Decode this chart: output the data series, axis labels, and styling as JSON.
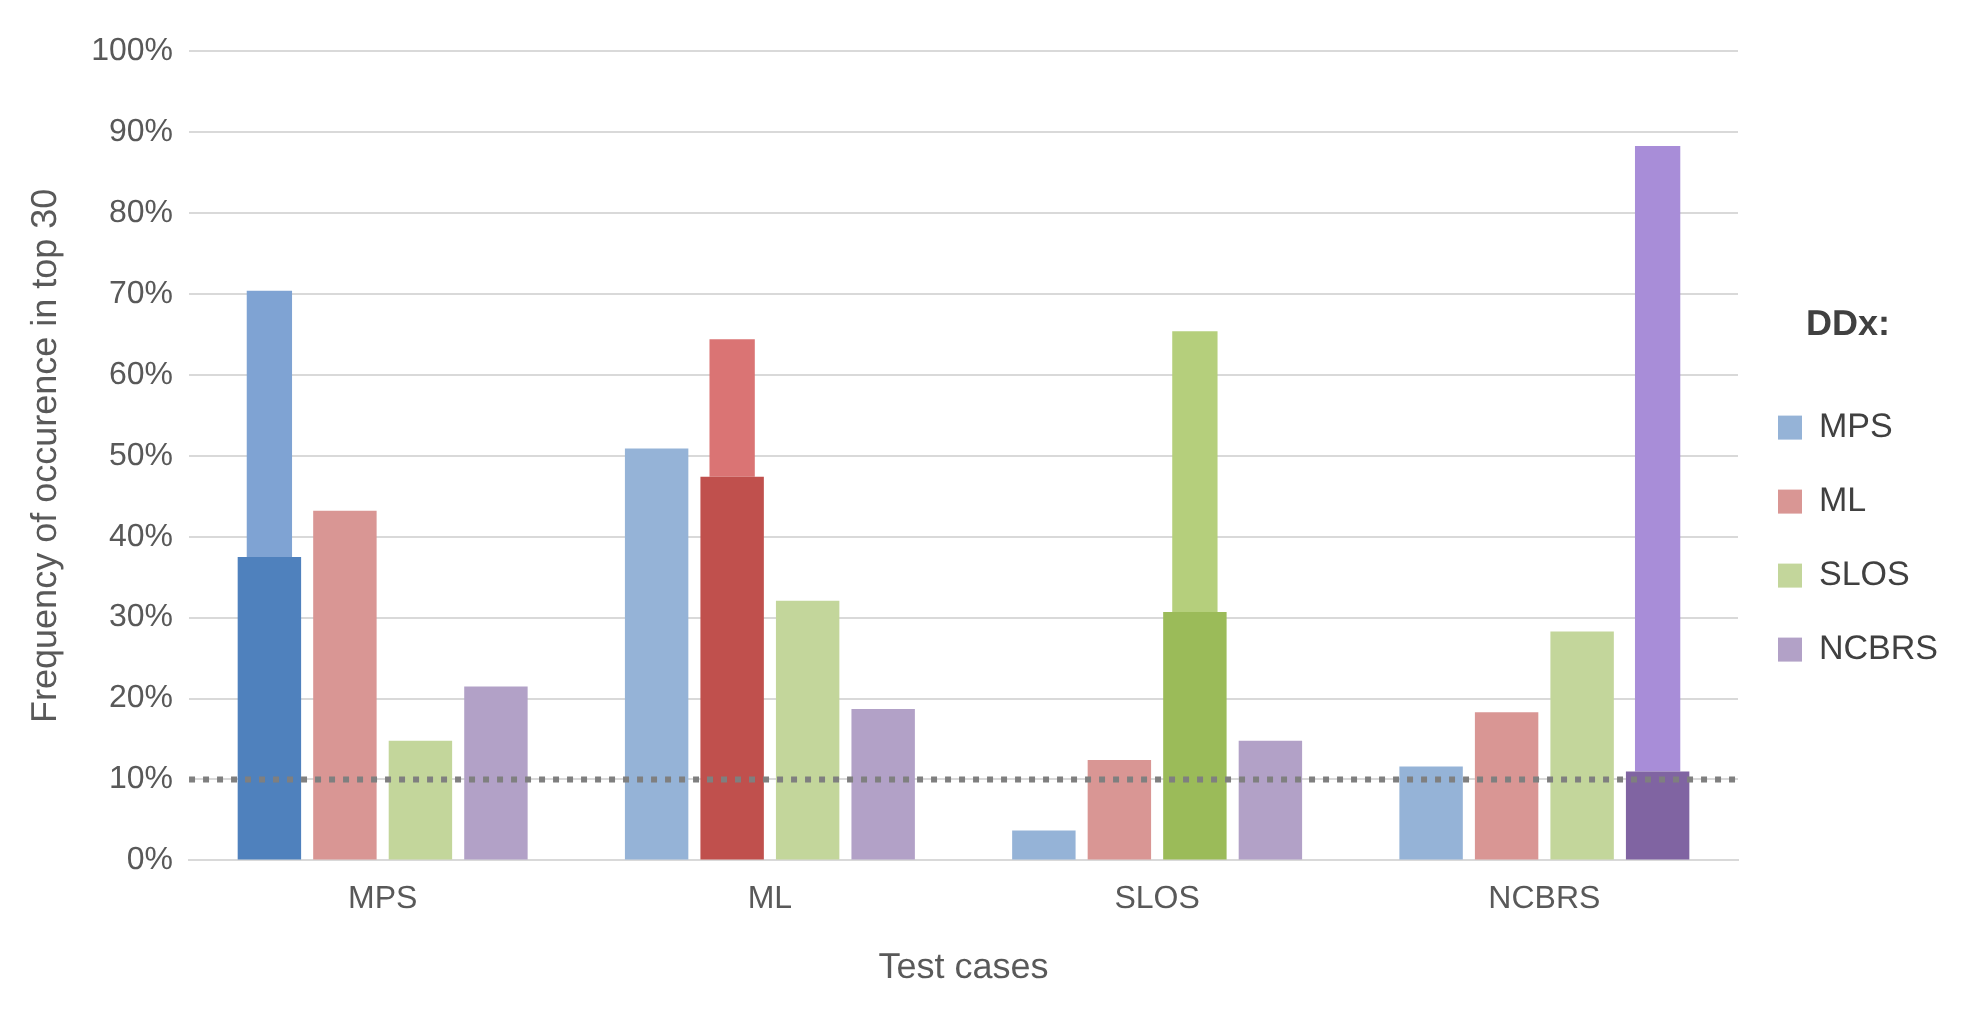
{
  "chart_data": {
    "type": "bar",
    "xlabel": "Test cases",
    "ylabel": "Frequency of occurence in top 30",
    "legend_title": "DDx:",
    "categories": [
      "MPS",
      "ML",
      "SLOS",
      "NCBRS"
    ],
    "series": [
      {
        "name": "MPS",
        "color": "#95b3d7",
        "colors": [
          "#4f81bd",
          "#95b3d7",
          "#95b3d7",
          "#95b3d7"
        ],
        "values": [
          37.5,
          50.9,
          3.7,
          11.6
        ]
      },
      {
        "color": "#7fa3d3",
        "values": [
          32.9,
          null,
          null,
          null
        ],
        "base": [
          37.5,
          null,
          null,
          null
        ]
      },
      {
        "name": "ML",
        "color": "#d99694",
        "colors": [
          "#d99694",
          "#c0504d",
          "#d99694",
          "#d99694"
        ],
        "values": [
          43.2,
          47.4,
          12.4,
          18.3
        ]
      },
      {
        "color": "#da7474",
        "values": [
          null,
          17.0,
          null,
          null
        ],
        "base": [
          null,
          47.4,
          null,
          null
        ]
      },
      {
        "name": "SLOS",
        "color": "#c3d69b",
        "colors": [
          "#c3d69b",
          "#c3d69b",
          "#9bbb59",
          "#c3d69b"
        ],
        "values": [
          14.8,
          32.1,
          30.7,
          28.3
        ]
      },
      {
        "color": "#b5cf7c",
        "values": [
          null,
          null,
          34.7,
          null
        ],
        "base": [
          null,
          null,
          30.7,
          null
        ]
      },
      {
        "name": "NCBRS",
        "color": "#b2a1c7",
        "colors": [
          "#b2a1c7",
          "#b2a1c7",
          "#b2a1c7",
          "#8064a2"
        ],
        "values": [
          21.5,
          18.7,
          14.8,
          11.0
        ]
      },
      {
        "color": "#a88dd8",
        "values": [
          null,
          null,
          null,
          77.3
        ],
        "base": [
          null,
          null,
          null,
          11.0
        ]
      }
    ],
    "ylim": [
      0,
      100
    ],
    "yticks": [
      {
        "value": 0,
        "label": "0%"
      },
      {
        "value": 10,
        "label": "10%"
      },
      {
        "value": 20,
        "label": "20%"
      },
      {
        "value": 30,
        "label": "30%"
      },
      {
        "value": 40,
        "label": "40%"
      },
      {
        "value": 50,
        "label": "50%"
      },
      {
        "value": 60,
        "label": "60%"
      },
      {
        "value": 70,
        "label": "70%"
      },
      {
        "value": 80,
        "label": "80%"
      },
      {
        "value": 90,
        "label": "90%"
      },
      {
        "value": 100,
        "label": "100%"
      }
    ],
    "grid": "y",
    "legend": "right",
    "ref_lines": [
      {
        "axis": "y",
        "value": 10,
        "color": "#7f7f7f",
        "line_style": "dotted"
      }
    ]
  }
}
